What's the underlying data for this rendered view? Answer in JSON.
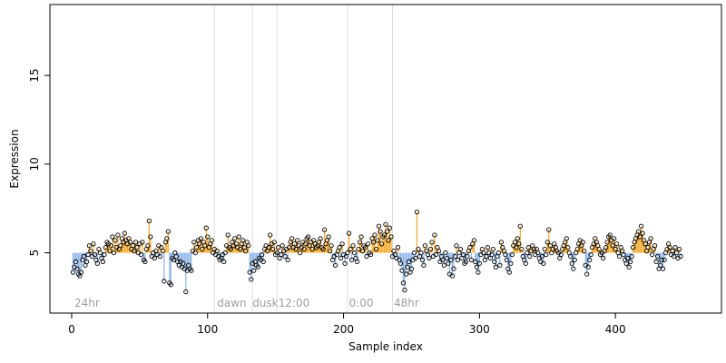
{
  "chart_data": {
    "type": "scatter",
    "title": "",
    "xlabel": "Sample index",
    "ylabel": "Expression",
    "xlim": [
      -16,
      478
    ],
    "ylim": [
      1.6,
      19.0
    ],
    "x_ticks": [
      0,
      100,
      200,
      300,
      400
    ],
    "y_ticks": [
      5,
      10,
      15
    ],
    "baseline": 5.0,
    "grid": false,
    "colors": {
      "above": "#f5a623",
      "below": "#8ab4e8",
      "points": "#000000",
      "vlines": "#dddddd",
      "annotations": "#9e9e9e"
    },
    "vlines": [
      105,
      133,
      151,
      203,
      236
    ],
    "annotations": [
      {
        "x": 2,
        "text": "24hr"
      },
      {
        "x": 107,
        "text": "dawn"
      },
      {
        "x": 133,
        "text": "dusk"
      },
      {
        "x": 152,
        "text": "12:00"
      },
      {
        "x": 204,
        "text": "0:00"
      },
      {
        "x": 237,
        "text": "48hr"
      }
    ],
    "series": [
      {
        "x_start": 1,
        "values": [
          3.9,
          4.2,
          4.5,
          4.1,
          3.8,
          3.7,
          3.9,
          4.6,
          4.8,
          4.3,
          4.5,
          4.9,
          5.4,
          5.1,
          4.8,
          5.5,
          4.9,
          4.6,
          4.4,
          5.2,
          5.0,
          4.7,
          4.5,
          4.9,
          5.3,
          5.6,
          5.5,
          5.1,
          5.4,
          5.9,
          5.0,
          5.7,
          5.3,
          6.0,
          5.2,
          5.4,
          5.8,
          5.6,
          6.1,
          5.7,
          5.5,
          5.8,
          5.6,
          5.2,
          5.4,
          5.1,
          5.6,
          5.3,
          5.0,
          5.5,
          4.9,
          5.6,
          4.6,
          4.5,
          5.2,
          5.4,
          6.8,
          5.9,
          4.8,
          5.0,
          4.7,
          5.1,
          4.9,
          5.4,
          4.8,
          5.3,
          5.1,
          3.4,
          5.6,
          5.8,
          6.2,
          3.3,
          3.2,
          4.7,
          4.6,
          5.0,
          4.8,
          4.5,
          4.3,
          4.5,
          4.2,
          4.4,
          4.1,
          2.8,
          4.0,
          4.3,
          4.1,
          4.0,
          5.1,
          5.6,
          5.0,
          5.3,
          5.7,
          5.5,
          5.8,
          5.2,
          5.6,
          5.4,
          6.4,
          5.9,
          5.3,
          5.5,
          5.7,
          5.0,
          5.2,
          4.9,
          5.1,
          4.8,
          4.6,
          4.7,
          4.9,
          4.5,
          5.0,
          5.4,
          6.0,
          5.3,
          5.2,
          5.6,
          5.4,
          5.8,
          5.5,
          5.3,
          5.9,
          5.2,
          5.5,
          5.7,
          5.3,
          5.1,
          5.6,
          5.4,
          3.9,
          3.5,
          4.4,
          4.0,
          4.5,
          4.3,
          4.2,
          4.7,
          4.6,
          4.9,
          4.5,
          5.2,
          5.4,
          5.1,
          5.3,
          6.0,
          5.5,
          5.2,
          5.6,
          4.9,
          5.0,
          5.3,
          4.7,
          4.9,
          5.4,
          5.1,
          4.8,
          5.2,
          4.6,
          5.3,
          5.6,
          5.8,
          5.3,
          5.5,
          5.2,
          5.7,
          5.4,
          5.0,
          5.3,
          5.6,
          5.2,
          5.5,
          5.8,
          5.9,
          5.4,
          5.6,
          5.2,
          5.7,
          5.5,
          5.3,
          5.4,
          5.6,
          5.8,
          5.3,
          5.2,
          6.3,
          5.5,
          5.7,
          5.9,
          5.1,
          5.4,
          4.6,
          4.8,
          4.3,
          4.9,
          5.1,
          5.3,
          4.7,
          5.5,
          4.9,
          4.4,
          4.8,
          5.0,
          6.1,
          5.2,
          4.6,
          5.4,
          5.0,
          4.7,
          4.5,
          5.2,
          5.6,
          5.9,
          5.1,
          5.4,
          5.3,
          4.8,
          5.5,
          5.0,
          4.9,
          5.8,
          5.6,
          6.0,
          5.2,
          5.7,
          6.5,
          6.2,
          5.5,
          5.9,
          6.0,
          6.6,
          6.2,
          5.7,
          6.4,
          5.9,
          4.8,
          5.1,
          4.9,
          4.7,
          5.3,
          4.6,
          4.4,
          4.0,
          3.3,
          2.9,
          3.8,
          4.2,
          4.5,
          3.9,
          4.1,
          4.6,
          5.0,
          4.7,
          7.3,
          5.2,
          4.8,
          5.0,
          4.6,
          4.3,
          5.4,
          5.1,
          4.9,
          4.7,
          5.2,
          5.6,
          4.8,
          6.0,
          4.9,
          5.3,
          5.1,
          4.5,
          4.8,
          4.6,
          4.3,
          5.0,
          4.7,
          4.4,
          3.8,
          4.6,
          3.7,
          4.1,
          4.8,
          5.4,
          4.6,
          5.0,
          5.2,
          4.7,
          4.9,
          4.4,
          4.5,
          4.8,
          5.1,
          5.3,
          4.6,
          5.5,
          5.7,
          4.5,
          4.2,
          3.9,
          4.4,
          4.9,
          5.2,
          5.0,
          4.6,
          4.8,
          5.3,
          5.0,
          4.7,
          4.9,
          5.2,
          4.5,
          4.2,
          4.8,
          5.0,
          4.3,
          5.6,
          5.3,
          5.1,
          4.9,
          4.6,
          4.1,
          3.9,
          4.4,
          4.9,
          5.4,
          5.6,
          5.3,
          5.8,
          5.5,
          6.5,
          5.2,
          4.8,
          4.6,
          4.4,
          5.0,
          5.3,
          4.8,
          5.1,
          5.4,
          5.2,
          4.9,
          5.2,
          5.0,
          4.7,
          4.5,
          4.8,
          4.4,
          5.2,
          4.9,
          5.6,
          6.3,
          5.4,
          5.0,
          5.2,
          5.5,
          5.3,
          5.1,
          5.0,
          4.7,
          4.9,
          5.2,
          5.4,
          5.6,
          5.8,
          5.3,
          5.0,
          4.8,
          4.4,
          4.1,
          4.6,
          5.0,
          5.2,
          5.5,
          5.7,
          5.4,
          5.6,
          5.1,
          4.3,
          3.8,
          4.2,
          4.6,
          4.9,
          5.3,
          5.5,
          5.8,
          5.6,
          5.4,
          5.2,
          4.9,
          5.0,
          4.7,
          5.1,
          5.3,
          5.6,
          5.9,
          6.0,
          5.7,
          5.4,
          5.8,
          5.2,
          5.5,
          5.0,
          4.8,
          5.3,
          5.1,
          4.9,
          4.6,
          4.4,
          4.7,
          4.2,
          4.5,
          4.8,
          5.3,
          5.6,
          5.8,
          6.0,
          6.2,
          5.9,
          6.5,
          6.1,
          5.7,
          5.5,
          5.1,
          5.3,
          5.6,
          5.8,
          4.9,
          5.2,
          5.4,
          4.5,
          4.8,
          4.1,
          4.3,
          4.6,
          4.1,
          4.6,
          5.0,
          5.2,
          5.5,
          5.3,
          4.9,
          5.1,
          4.8,
          5.3,
          5.0,
          4.7,
          5.2,
          4.8
        ]
      }
    ]
  }
}
